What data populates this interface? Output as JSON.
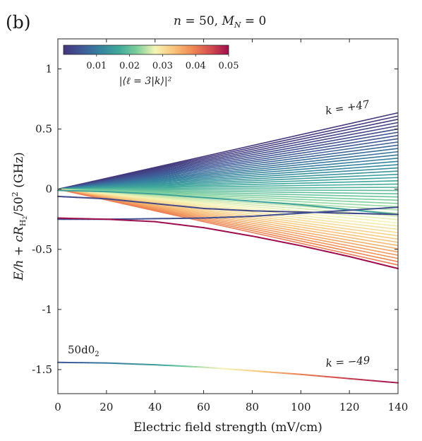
{
  "panel_label": "(b)",
  "chart_data": {
    "type": "line",
    "title": "n = 50, M_N = 0",
    "title_parts": {
      "n": "n",
      "eq1": " = 50, ",
      "M": "M",
      "sub": "N",
      "eq2": " = 0"
    },
    "xlabel": "Electric field strength (mV/cm)",
    "ylabel_parts": {
      "a": "E/h + c",
      "R": "R",
      "sub": "H",
      "sub2": "2",
      "b": "/50",
      "sup": "2",
      "c": " (GHz)"
    },
    "xlim": [
      0,
      140
    ],
    "ylim": [
      -1.7,
      1.25
    ],
    "xticks": [
      "0",
      "20",
      "40",
      "60",
      "80",
      "100",
      "120",
      "140"
    ],
    "xtick_values": [
      0,
      20,
      40,
      60,
      80,
      100,
      120,
      140
    ],
    "yticks": [
      "1",
      "0.5",
      "0",
      "-0.5",
      "-1",
      "-1.5"
    ],
    "ytick_values": [
      1,
      0.5,
      0,
      -0.5,
      -1,
      -1.5
    ],
    "grid": false,
    "colorbar": {
      "ticks": [
        "0.01",
        "0.02",
        "0.03",
        "0.04",
        "0.05"
      ],
      "tick_values": [
        0.01,
        0.02,
        0.03,
        0.04,
        0.05
      ],
      "range": [
        0,
        0.05
      ],
      "label": "|⟨ℓ = 3|k⟩|²",
      "placement": "top-left",
      "colormap": [
        "#45357c",
        "#3f5a98",
        "#36839f",
        "#3fa89b",
        "#7ccf9c",
        "#f6f5b6",
        "#f9c47a",
        "#f08a55",
        "#d54e4f",
        "#9f0f4e"
      ]
    },
    "annotations": {
      "top_k": "k = +47",
      "bottom_k": "k = −49",
      "state_label": "50d0",
      "state_sub": "2"
    },
    "fan": {
      "x_range": [
        0,
        140
      ],
      "start_value": 0.0,
      "end_top": 0.635,
      "end_bottom": -0.63,
      "n_lines": 48,
      "k_top": 47,
      "weight_top": 0.0,
      "weight_bottom": 0.04
    },
    "series": [
      {
        "x": [
          0,
          20,
          40,
          60,
          80,
          100,
          120,
          140
        ],
        "y": [
          -0.01,
          -0.02,
          -0.04,
          -0.07,
          -0.1,
          -0.13,
          -0.17,
          -0.21
        ],
        "weight": 0.016
      },
      {
        "x": [
          0,
          20,
          40,
          60,
          80,
          100,
          120,
          140
        ],
        "y": [
          -0.06,
          -0.08,
          -0.12,
          -0.16,
          -0.18,
          -0.19,
          -0.2,
          -0.21
        ],
        "weight": 0.003
      },
      {
        "x": [
          0,
          20,
          40,
          60,
          80,
          100,
          120,
          140
        ],
        "y": [
          -0.25,
          -0.25,
          -0.245,
          -0.24,
          -0.225,
          -0.2,
          -0.175,
          -0.15
        ],
        "weight": 0.004
      },
      {
        "x": [
          0,
          20,
          40,
          60,
          80,
          100,
          120,
          140
        ],
        "y": [
          -0.24,
          -0.25,
          -0.27,
          -0.32,
          -0.39,
          -0.47,
          -0.56,
          -0.66
        ],
        "weight": 0.05
      },
      {
        "x": [
          0,
          20,
          40,
          60,
          80,
          100,
          120,
          140
        ],
        "y": [
          -1.44,
          -1.445,
          -1.46,
          -1.48,
          -1.51,
          -1.54,
          -1.575,
          -1.61
        ],
        "weight": [
          0.005,
          0.01,
          0.015,
          0.025,
          0.032,
          0.04,
          0.046,
          0.05
        ]
      }
    ]
  }
}
